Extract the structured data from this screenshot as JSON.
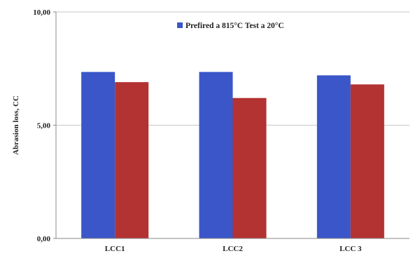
{
  "chart_data": {
    "type": "bar",
    "categories": [
      "LCC1",
      "LCC2",
      "LCC 3"
    ],
    "series": [
      {
        "name": "Prefired at 815°C Test at 20°C",
        "color": "#3a56c8",
        "values": [
          7.35,
          7.35,
          7.2
        ]
      },
      {
        "name": "",
        "color": "#b33232",
        "values": [
          6.9,
          6.2,
          6.8
        ]
      }
    ],
    "legend": {
      "text": "Prefired a 815°C Test a 20°C",
      "placement": "top-center"
    },
    "ylabel": "Abrasion loss, CC",
    "xlabel": "",
    "ylim": [
      0,
      10
    ],
    "yticks": [
      {
        "value": 0,
        "label": "0,00"
      },
      {
        "value": 5,
        "label": "5,00"
      },
      {
        "value": 10,
        "label": "10,00"
      }
    ],
    "grid": true
  }
}
